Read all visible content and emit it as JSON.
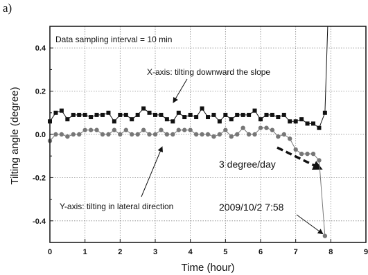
{
  "panel_label": "a)",
  "chart_data": {
    "type": "scatter",
    "xlabel": "Time (hour)",
    "ylabel": "Tilting angle (degree)",
    "xlim": [
      0,
      9
    ],
    "ylim": [
      -0.5,
      0.5
    ],
    "xticks": [
      "0",
      "1",
      "2",
      "3",
      "4",
      "5",
      "6",
      "7",
      "8",
      "9"
    ],
    "yticks": [
      "0.4",
      "0.2",
      "0.0",
      "-0.2",
      "-0.4"
    ],
    "grid": true,
    "annotations": {
      "sampling": "Data sampling interval = 10 min",
      "x_axis": "X-axis: tilting downward the slope",
      "y_axis": "Y-axis: tilting in lateral direction",
      "rate": "3 degree/day",
      "timestamp": "2009/10/2 7:58"
    },
    "series": [
      {
        "marker": "square",
        "color": "#111111",
        "x": [
          0.0,
          0.167,
          0.333,
          0.5,
          0.667,
          0.833,
          1.0,
          1.167,
          1.333,
          1.5,
          1.667,
          1.833,
          2.0,
          2.167,
          2.333,
          2.5,
          2.667,
          2.833,
          3.0,
          3.167,
          3.333,
          3.5,
          3.667,
          3.833,
          4.0,
          4.167,
          4.333,
          4.5,
          4.667,
          4.833,
          5.0,
          5.167,
          5.333,
          5.5,
          5.667,
          5.833,
          6.0,
          6.167,
          6.333,
          6.5,
          6.667,
          6.833,
          7.0,
          7.167,
          7.333,
          7.5,
          7.667,
          7.833
        ],
        "y": [
          0.06,
          0.1,
          0.11,
          0.07,
          0.09,
          0.09,
          0.09,
          0.08,
          0.09,
          0.09,
          0.1,
          0.06,
          0.09,
          0.09,
          0.07,
          0.09,
          0.12,
          0.1,
          0.09,
          0.09,
          0.07,
          0.06,
          0.1,
          0.08,
          0.09,
          0.08,
          0.12,
          0.08,
          0.09,
          0.06,
          0.09,
          0.07,
          0.09,
          0.09,
          0.09,
          0.11,
          0.07,
          0.09,
          0.09,
          0.08,
          0.09,
          0.06,
          0.06,
          0.07,
          0.05,
          0.05,
          0.03,
          0.1
        ]
      },
      {
        "marker": "circle",
        "color": "#777777",
        "x": [
          0.0,
          0.167,
          0.333,
          0.5,
          0.667,
          0.833,
          1.0,
          1.167,
          1.333,
          1.5,
          1.667,
          1.833,
          2.0,
          2.167,
          2.333,
          2.5,
          2.667,
          2.833,
          3.0,
          3.167,
          3.333,
          3.5,
          3.667,
          3.833,
          4.0,
          4.167,
          4.333,
          4.5,
          4.667,
          4.833,
          5.0,
          5.167,
          5.333,
          5.5,
          5.667,
          5.833,
          6.0,
          6.167,
          6.333,
          6.5,
          6.667,
          6.833,
          7.0,
          7.167,
          7.333,
          7.5,
          7.667,
          7.833
        ],
        "y": [
          -0.03,
          0.0,
          0.0,
          -0.01,
          0.0,
          0.0,
          0.02,
          0.02,
          0.02,
          0.0,
          0.0,
          0.02,
          0.0,
          0.02,
          0.0,
          0.0,
          0.02,
          0.0,
          0.0,
          0.02,
          0.0,
          0.0,
          0.02,
          0.02,
          0.02,
          0.0,
          0.0,
          0.0,
          -0.01,
          0.0,
          0.02,
          -0.01,
          0.0,
          0.03,
          0.0,
          0.0,
          0.03,
          0.03,
          0.02,
          -0.01,
          0.0,
          -0.02,
          -0.07,
          -0.09,
          -0.09,
          -0.09,
          -0.12,
          -0.47
        ]
      }
    ]
  }
}
